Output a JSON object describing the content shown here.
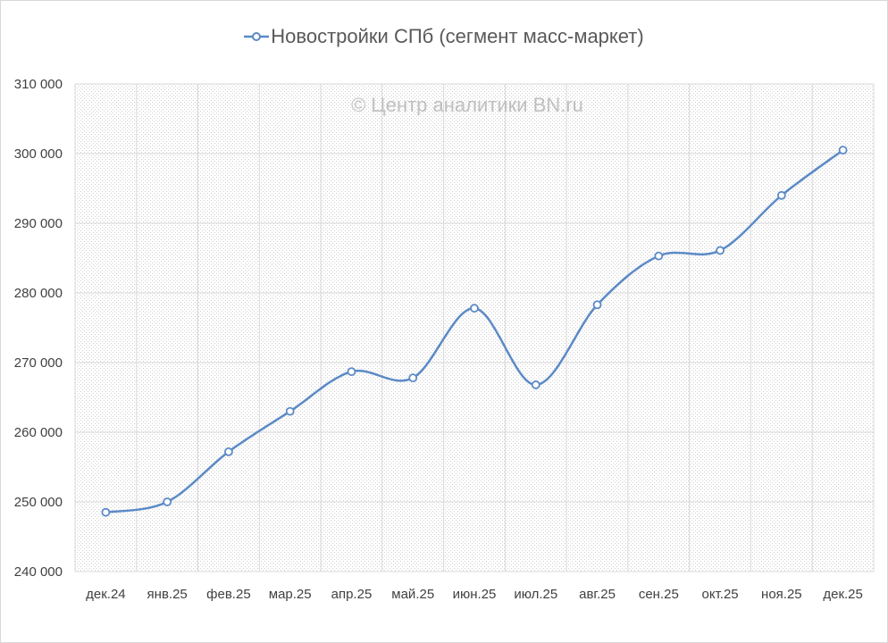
{
  "chart_data": {
    "type": "line",
    "legend": {
      "label": "Новостройки СПб (сегмент масс-маркет)",
      "placement": "top"
    },
    "watermark": "© Центр аналитики BN.ru",
    "categories": [
      "дек.24",
      "янв.25",
      "фев.25",
      "мар.25",
      "апр.25",
      "май.25",
      "июн.25",
      "июл.25",
      "авг.25",
      "сен.25",
      "окт.25",
      "ноя.25",
      "дек.25"
    ],
    "series": [
      {
        "name": "Новостройки СПб (сегмент масс-маркет)",
        "values": [
          248500,
          250000,
          257200,
          263000,
          268700,
          267800,
          277800,
          266800,
          278300,
          285300,
          286100,
          294000,
          300500
        ]
      }
    ],
    "ylim": [
      240000,
      310000
    ],
    "yticks": [
      240000,
      250000,
      260000,
      270000,
      280000,
      290000,
      300000,
      310000
    ],
    "ytick_labels": [
      "240 000",
      "250 000",
      "260 000",
      "270 000",
      "280 000",
      "290 000",
      "300 000",
      "310 000"
    ],
    "grid": true,
    "smoothed": true,
    "colors": {
      "line": "#5b8ac6",
      "marker_fill": "#ffffff",
      "grid": "#d9d9d9",
      "plot_bg": "#f2f2f2"
    }
  }
}
